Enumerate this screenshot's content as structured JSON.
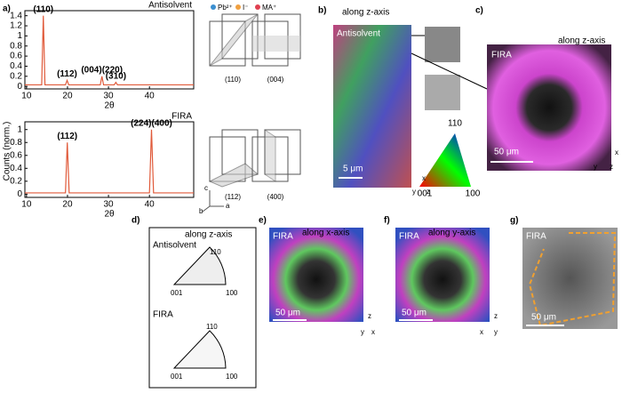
{
  "chart_data": [
    {
      "type": "line",
      "title": "Antisolvent",
      "x_label": "2θ",
      "x": [
        9.6,
        13.7,
        14.1,
        14.5,
        19.5,
        19.9,
        20.3,
        28.0,
        28.4,
        28.8,
        31.4,
        31.8,
        32.2,
        50.8
      ],
      "series": [
        {
          "name": "Antisolvent",
          "color": "#e05a3a",
          "values": [
            0.03,
            0.03,
            1.4,
            0.03,
            0.03,
            0.12,
            0.03,
            0.03,
            0.2,
            0.03,
            0.03,
            0.08,
            0.03,
            0.03
          ]
        }
      ],
      "xlim": [
        9.6,
        50.8
      ],
      "ylim": [
        -0.05,
        1.5
      ],
      "xticks": [
        10,
        20,
        30,
        40
      ],
      "yticks": [
        {
          "value": 0,
          "label": "0"
        },
        {
          "value": 0.2,
          "label": "0.2"
        },
        {
          "value": 0.4,
          "label": "0.4"
        },
        {
          "value": 0.6,
          "label": "0.6"
        },
        {
          "value": 0.8,
          "label": "0.8"
        },
        {
          "value": 1,
          "label": "1"
        },
        {
          "value": 1.2,
          "label": "1.2"
        },
        {
          "value": 1.4,
          "label": "1.4"
        }
      ],
      "annotations": [
        {
          "text": "(110)",
          "x": 14.1,
          "y": 1.4
        },
        {
          "text": "(112)",
          "x": 19.9,
          "y": 0.12
        },
        {
          "text": "(004)(220)",
          "x": 28.4,
          "y": 0.2
        },
        {
          "text": "(310)",
          "x": 31.8,
          "y": 0.08
        }
      ]
    },
    {
      "type": "line",
      "title": "FIRA",
      "x_label": "2θ",
      "x": [
        9.6,
        19.5,
        19.95,
        20.4,
        40.0,
        40.5,
        41.0,
        50.8
      ],
      "series": [
        {
          "name": "FIRA",
          "color": "#e05a3a",
          "values": [
            0.02,
            0.02,
            0.8,
            0.02,
            0.02,
            1,
            0.02,
            0.02
          ]
        }
      ],
      "xlim": [
        9.6,
        50.8
      ],
      "ylim": [
        -0.05,
        1.12
      ],
      "xticks": [
        10,
        20,
        30,
        40
      ],
      "yticks": [
        {
          "value": 0,
          "label": "0"
        },
        {
          "value": 0.2,
          "label": "0.2"
        },
        {
          "value": 0.4,
          "label": "0.4"
        },
        {
          "value": 0.6,
          "label": "0.6"
        },
        {
          "value": 0.8,
          "label": "0.8"
        },
        {
          "value": 1,
          "label": "1"
        }
      ],
      "annotations": [
        {
          "text": "(112)",
          "x": 19.95,
          "y": 0.8
        },
        {
          "text": "(224)(400)",
          "x": 40.5,
          "y": 1
        }
      ]
    }
  ],
  "y_label": "Counts (norm.)",
  "panel_labels": [
    "a)",
    "b)",
    "c)",
    "d)",
    "e)",
    "f)",
    "g)"
  ],
  "structure": {
    "legend": [
      "Pb²⁺",
      "I⁻",
      "MA⁺"
    ],
    "planes": [
      "(110)",
      "(004)",
      "(112)",
      "(400)"
    ],
    "axes": [
      "c",
      "b",
      "a"
    ]
  },
  "b": {
    "view": "along z-axis",
    "sample": "Antisolvent",
    "scale": "5 μm",
    "axes": [
      "x",
      "y",
      "z"
    ],
    "ipf": [
      "110",
      "001",
      "100"
    ]
  },
  "c": {
    "view": "along z-axis",
    "sample": "FIRA",
    "scale": "50 μm",
    "axes": [
      "x",
      "y",
      "z"
    ]
  },
  "d": {
    "view": "along z-axis",
    "samples": [
      "Antisolvent",
      "FIRA"
    ],
    "ipf1": [
      "110",
      "001",
      "100"
    ],
    "ipf2": [
      "110",
      "001",
      "100"
    ]
  },
  "e": {
    "view": "along x-axis",
    "sample": "FIRA",
    "scale": "50 μm",
    "axes": [
      "z",
      "y",
      "x"
    ]
  },
  "f": {
    "view": "along y-axis",
    "sample": "FIRA",
    "scale": "50 μm",
    "axes": [
      "z",
      "x",
      "y"
    ]
  },
  "g": {
    "sample": "FIRA",
    "scale": "50 μm"
  }
}
